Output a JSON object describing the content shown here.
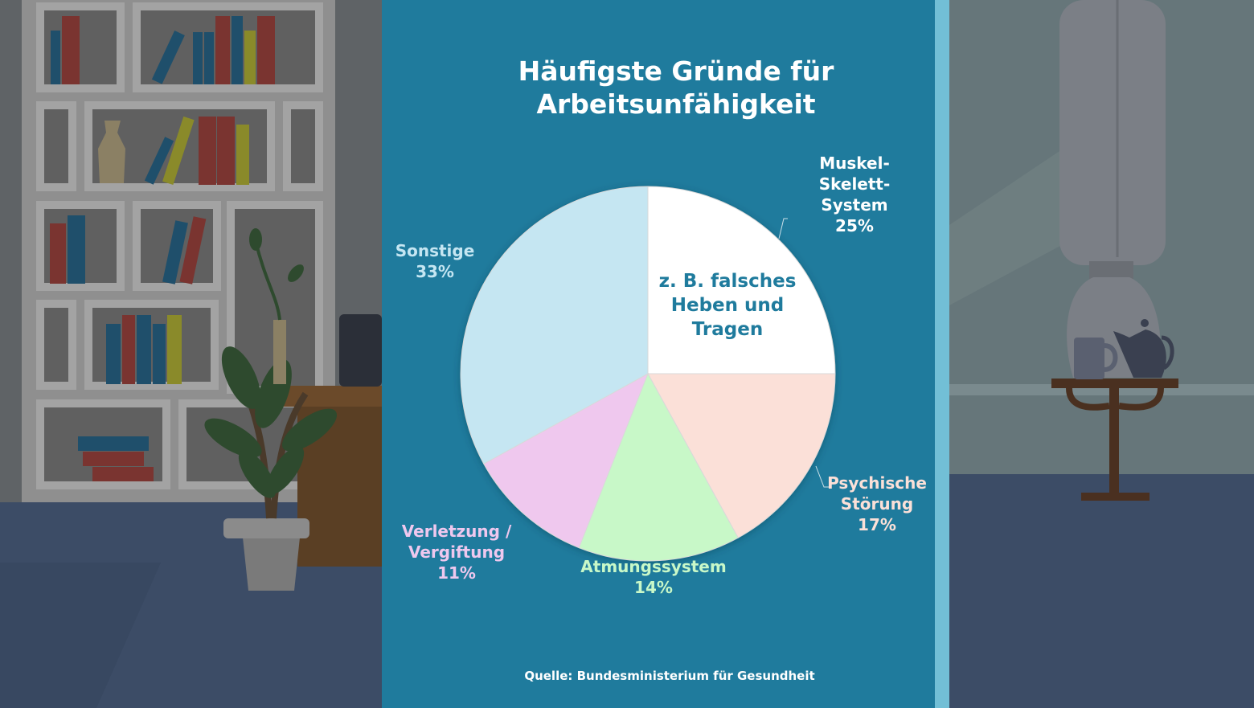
{
  "colors": {
    "panel": "#1f7b9d",
    "panel_edge": "#72bfd6",
    "text_white": "#ffffff"
  },
  "background_scene": {
    "left": "dimmed-office-bookshelf-with-plant-and-desk",
    "right": "dimmed-window-with-curtain-and-side-table-with-mug-and-teapot"
  },
  "chart_data": {
    "type": "pie",
    "title_lines": [
      "Häufigste Gründe für",
      "Arbeitsunfähigkeit"
    ],
    "slices": [
      {
        "key": "muskel",
        "label_lines": [
          "Muskel-",
          "Skelett-",
          "System"
        ],
        "value": 25,
        "value_label": "25%",
        "color": "#ffffff",
        "label_color": "#ffffff"
      },
      {
        "key": "psychisch",
        "label_lines": [
          "Psychische",
          "Störung"
        ],
        "value": 17,
        "value_label": "17%",
        "color": "#fbe0d8",
        "label_color": "#fbe0d8"
      },
      {
        "key": "atmung",
        "label_lines": [
          "Atmungssystem"
        ],
        "value": 14,
        "value_label": "14%",
        "color": "#c8f8c8",
        "label_color": "#c8f8c8"
      },
      {
        "key": "verletzung",
        "label_lines": [
          "Verletzung /",
          "Vergiftung"
        ],
        "value": 11,
        "value_label": "11%",
        "color": "#efc8ee",
        "label_color": "#efc8ee"
      },
      {
        "key": "sonstige",
        "label_lines": [
          "Sonstige"
        ],
        "value": 33,
        "value_label": "33%",
        "color": "#c5e6f2",
        "label_color": "#c5e6f2"
      }
    ],
    "annotation_lines": [
      "z. B. falsches",
      "Heben und",
      "Tragen"
    ],
    "source": "Quelle: Bundesministerium für Gesundheit"
  }
}
